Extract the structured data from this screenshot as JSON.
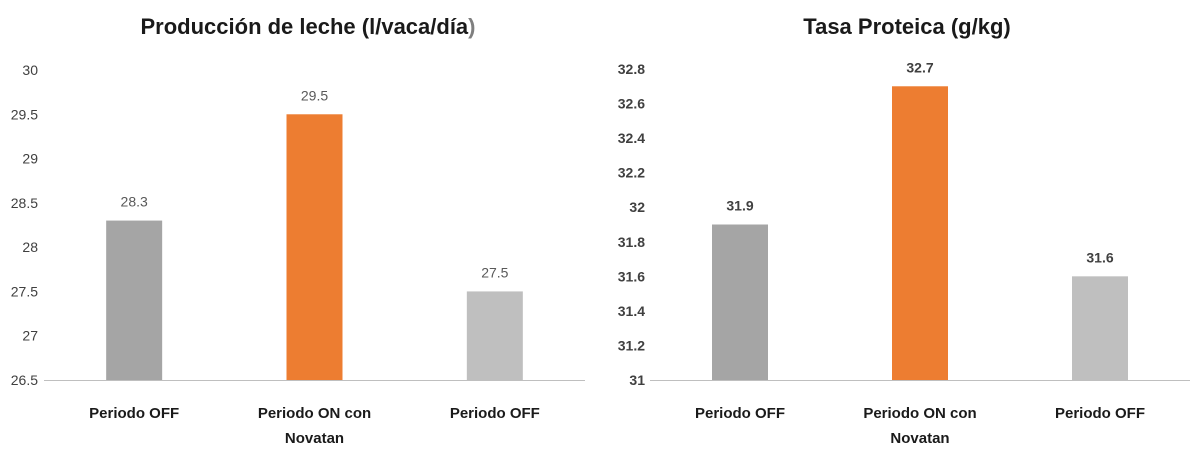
{
  "chart_data": [
    {
      "type": "bar",
      "title": "Producción de leche (l/vaca/día)",
      "categories": [
        "Periodo OFF",
        "Periodo ON con Novatan",
        "Periodo OFF"
      ],
      "values": [
        28.3,
        29.5,
        27.5
      ],
      "ylim": [
        26.5,
        30
      ],
      "yticks": [
        "26.5",
        "27",
        "27.5",
        "28",
        "28.5",
        "29",
        "29.5",
        "30"
      ],
      "colors": [
        "#a5a5a5",
        "#ed7d31",
        "#bfbfbf"
      ],
      "grid": false,
      "xlabel": "",
      "ylabel": ""
    },
    {
      "type": "bar",
      "title": "Tasa Proteica (g/kg)",
      "categories": [
        "Periodo OFF",
        "Periodo ON con Novatan",
        "Periodo OFF"
      ],
      "values": [
        31.9,
        32.7,
        31.6
      ],
      "ylim": [
        31,
        32.8
      ],
      "yticks": [
        "31",
        "31.2",
        "31.4",
        "31.6",
        "31.8",
        "32",
        "32.2",
        "32.4",
        "32.6",
        "32.8"
      ],
      "colors": [
        "#a5a5a5",
        "#ed7d31",
        "#bfbfbf"
      ],
      "grid": false,
      "xlabel": "",
      "ylabel": ""
    }
  ]
}
